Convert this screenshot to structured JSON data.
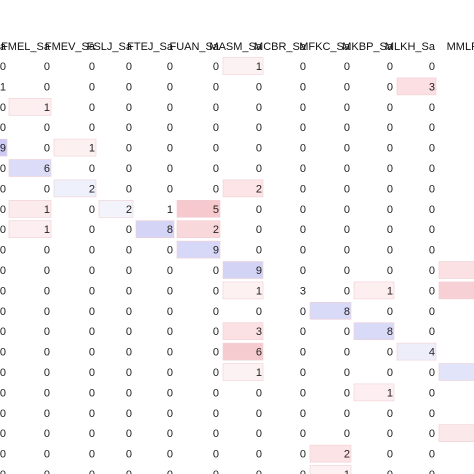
{
  "chart_data": {
    "type": "heatmap",
    "columns": [
      "a",
      "FMEL_Sa",
      "FMEV_Sa",
      "FSLJ_Sa",
      "FTEJ_Sa",
      "FUAN_Sa",
      "MASM_Sa",
      "MCBR_Sa",
      "MFKC_Sa",
      "MKBP_Sa",
      "MLKH_Sa",
      "MMLP_Sa"
    ],
    "matrix": [
      [
        "0",
        "0",
        "0",
        "0",
        "0",
        "0",
        "1",
        "0",
        "0",
        "0",
        "0",
        "0"
      ],
      [
        "1",
        "0",
        "0",
        "0",
        "0",
        "0",
        "0",
        "0",
        "0",
        "0",
        "3",
        "0"
      ],
      [
        "0",
        "1",
        "0",
        "0",
        "0",
        "0",
        "0",
        "0",
        "0",
        "0",
        "0",
        "0"
      ],
      [
        "0",
        "0",
        "0",
        "0",
        "0",
        "0",
        "0",
        "0",
        "0",
        "0",
        "0",
        "0"
      ],
      [
        "9",
        "0",
        "1",
        "0",
        "0",
        "0",
        "0",
        "0",
        "0",
        "0",
        "0",
        "0"
      ],
      [
        "0",
        "6",
        "0",
        "0",
        "0",
        "0",
        "0",
        "0",
        "0",
        "0",
        "0",
        "0"
      ],
      [
        "0",
        "0",
        "2",
        "0",
        "0",
        "0",
        "2",
        "0",
        "0",
        "0",
        "0",
        "0"
      ],
      [
        "0",
        "1",
        "0",
        "2",
        "1",
        "5",
        "0",
        "0",
        "0",
        "0",
        "0",
        "0"
      ],
      [
        "0",
        "1",
        "0",
        "0",
        "8",
        "2",
        "0",
        "0",
        "0",
        "0",
        "0",
        "0"
      ],
      [
        "0",
        "0",
        "0",
        "0",
        "0",
        "9",
        "0",
        "0",
        "0",
        "0",
        "0",
        "0"
      ],
      [
        "0",
        "0",
        "0",
        "0",
        "0",
        "0",
        "9",
        "0",
        "0",
        "0",
        "0",
        ""
      ],
      [
        "0",
        "0",
        "0",
        "0",
        "0",
        "0",
        "1",
        "3",
        "0",
        "1",
        "0",
        ""
      ],
      [
        "0",
        "0",
        "0",
        "0",
        "0",
        "0",
        "0",
        "0",
        "8",
        "0",
        "0",
        "0"
      ],
      [
        "0",
        "0",
        "0",
        "0",
        "0",
        "0",
        "3",
        "0",
        "0",
        "8",
        "0",
        "0"
      ],
      [
        "0",
        "0",
        "0",
        "0",
        "0",
        "0",
        "6",
        "0",
        "0",
        "0",
        "4",
        "0"
      ],
      [
        "0",
        "0",
        "0",
        "0",
        "0",
        "0",
        "1",
        "0",
        "0",
        "0",
        "0",
        ""
      ],
      [
        "0",
        "0",
        "0",
        "0",
        "0",
        "0",
        "0",
        "0",
        "0",
        "1",
        "0",
        "0"
      ],
      [
        "0",
        "0",
        "0",
        "0",
        "0",
        "0",
        "0",
        "0",
        "0",
        "0",
        "0",
        "0"
      ],
      [
        "0",
        "0",
        "0",
        "0",
        "0",
        "0",
        "0",
        "0",
        "0",
        "0",
        "0",
        "0"
      ],
      [
        "0",
        "0",
        "0",
        "0",
        "0",
        "0",
        "0",
        "0",
        "2",
        "0",
        "0",
        "0"
      ],
      [
        "0",
        "0",
        "0",
        "0",
        "0",
        "0",
        "0",
        "0",
        "1",
        "0",
        "0",
        "0"
      ]
    ],
    "cell_colors": [
      [
        null,
        null,
        null,
        null,
        null,
        null,
        "#fdf2f3",
        null,
        null,
        null,
        null,
        null
      ],
      [
        null,
        null,
        null,
        null,
        null,
        null,
        null,
        null,
        null,
        null,
        "#fbdfe2",
        null
      ],
      [
        null,
        "#fdeef0",
        null,
        null,
        null,
        null,
        null,
        null,
        null,
        null,
        null,
        null
      ],
      [
        null,
        null,
        null,
        null,
        null,
        null,
        null,
        null,
        null,
        null,
        null,
        null
      ],
      [
        "#cdcbf6",
        null,
        "#fdf0f1",
        null,
        null,
        null,
        null,
        null,
        null,
        null,
        null,
        null
      ],
      [
        null,
        "#dcdcf8",
        null,
        null,
        null,
        null,
        null,
        null,
        null,
        null,
        null,
        null
      ],
      [
        null,
        null,
        "#eef0fb",
        null,
        null,
        null,
        "#fce4e7",
        null,
        null,
        null,
        null,
        null
      ],
      [
        null,
        "#fcebed",
        null,
        "#f3f3fb",
        null,
        "#f6c9cf",
        null,
        null,
        null,
        null,
        null,
        null
      ],
      [
        null,
        "#fdeff1",
        null,
        null,
        "#d3d4f6",
        "#f9d8dc",
        null,
        null,
        null,
        null,
        null,
        null
      ],
      [
        null,
        null,
        null,
        null,
        null,
        "#d7d8f7",
        null,
        null,
        null,
        null,
        null,
        null
      ],
      [
        null,
        null,
        null,
        null,
        null,
        null,
        "#d3d3f6",
        null,
        null,
        null,
        null,
        "#fbe1e4"
      ],
      [
        null,
        null,
        null,
        null,
        null,
        null,
        "#fdf1f2",
        null,
        null,
        "#fdeef0",
        null,
        "#f6d0d5"
      ],
      [
        null,
        null,
        null,
        null,
        null,
        null,
        null,
        null,
        "#d8daf8",
        null,
        null,
        null
      ],
      [
        null,
        null,
        null,
        null,
        null,
        null,
        "#fbe1e4",
        null,
        null,
        "#d9daf8",
        null,
        null
      ],
      [
        null,
        null,
        null,
        null,
        null,
        null,
        "#f6cbd0",
        null,
        null,
        null,
        "#eeeefb",
        null
      ],
      [
        null,
        null,
        null,
        null,
        null,
        null,
        "#fdf2f3",
        null,
        null,
        null,
        null,
        "#e2e4f9"
      ],
      [
        null,
        null,
        null,
        null,
        null,
        null,
        null,
        null,
        null,
        "#fdeff1",
        null,
        null
      ],
      [
        null,
        null,
        null,
        null,
        null,
        null,
        null,
        null,
        null,
        null,
        null,
        null
      ],
      [
        null,
        null,
        null,
        null,
        null,
        null,
        null,
        null,
        null,
        null,
        null,
        "#fbe8ea"
      ],
      [
        null,
        null,
        null,
        null,
        null,
        null,
        null,
        null,
        "#fbe3e6",
        null,
        null,
        null
      ],
      [
        null,
        null,
        null,
        null,
        null,
        null,
        null,
        null,
        "#fdf1f2",
        null,
        null,
        null
      ]
    ],
    "cell_border": "#f0cfd4",
    "legend": "none",
    "grid": false
  }
}
